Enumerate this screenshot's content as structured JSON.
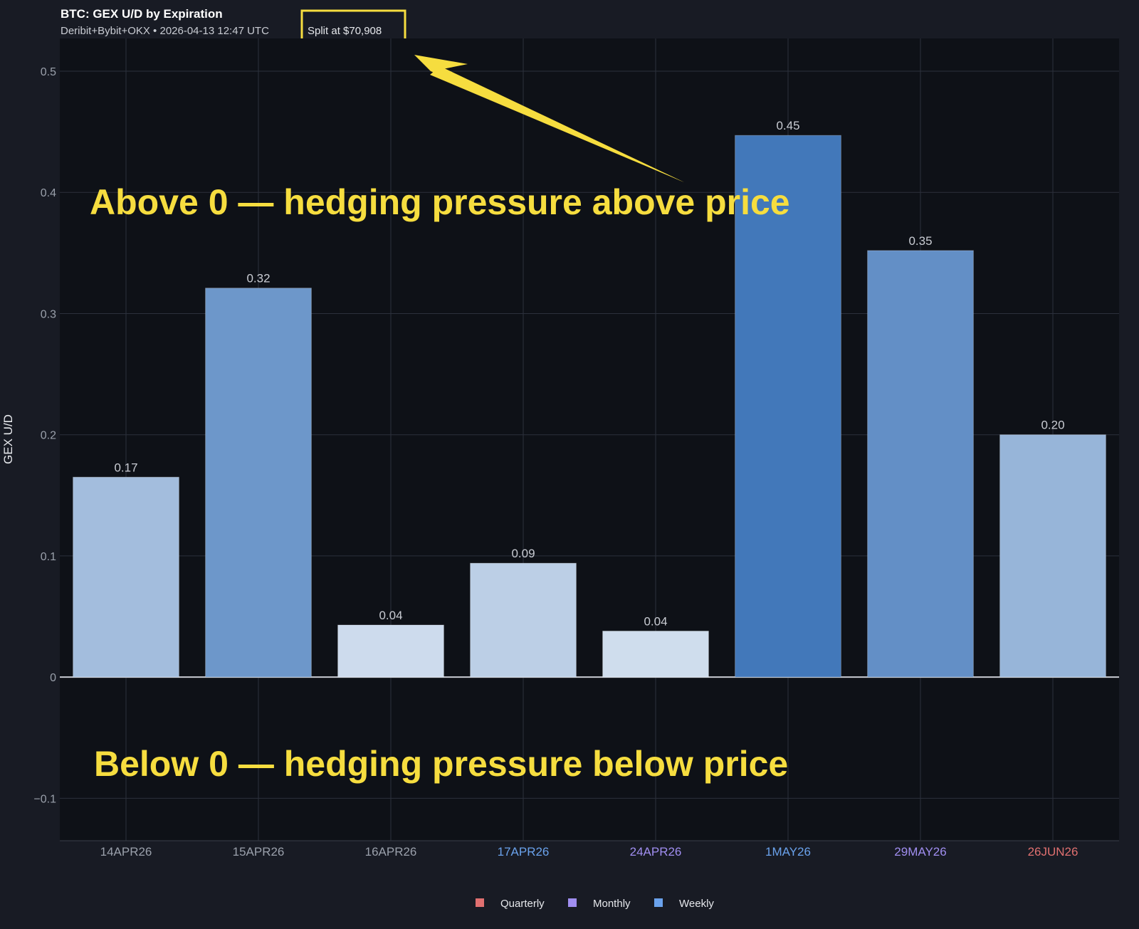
{
  "chart_data": {
    "type": "bar",
    "title": "BTC: GEX U/D by Expiration",
    "subtitle": "Deribit+Bybit+OKX • 2026-04-13 12:47 UTC",
    "split_note": "Split at $70,908",
    "xlabel": "",
    "ylabel": "GEX U/D",
    "ylim": [
      -0.135,
      0.527
    ],
    "yticks": [
      -0.1,
      0,
      0.1,
      0.2,
      0.3,
      0.4,
      0.5
    ],
    "ytick_labels": [
      "−0.1",
      "0",
      "0.1",
      "0.2",
      "0.3",
      "0.4",
      "0.5"
    ],
    "grid": true,
    "categories": [
      "14APR26",
      "15APR26",
      "16APR26",
      "17APR26",
      "24APR26",
      "1MAY26",
      "29MAY26",
      "26JUN26"
    ],
    "category_types": [
      "none",
      "none",
      "none",
      "Weekly",
      "Monthly",
      "Weekly",
      "Monthly",
      "Quarterly"
    ],
    "values": [
      0.165,
      0.321,
      0.043,
      0.094,
      0.038,
      0.447,
      0.352,
      0.2
    ],
    "value_labels": [
      "0.17",
      "0.32",
      "0.04",
      "0.09",
      "0.04",
      "0.45",
      "0.35",
      "0.20"
    ],
    "legend": {
      "placement": "bottom-center",
      "entries": [
        {
          "name": "Quarterly",
          "color": "#e07070"
        },
        {
          "name": "Monthly",
          "color": "#a08ef0"
        },
        {
          "name": "Weekly",
          "color": "#6aa2ec"
        }
      ]
    },
    "type_colors": {
      "none": "#9aa0ab",
      "Weekly": "#6aa2ec",
      "Monthly": "#a08ef0",
      "Quarterly": "#e07070"
    },
    "annotations": [
      "Above 0 — hedging pressure above price",
      "Below 0 — hedging pressure below price"
    ],
    "annotation_color": "#f6dd3f"
  }
}
